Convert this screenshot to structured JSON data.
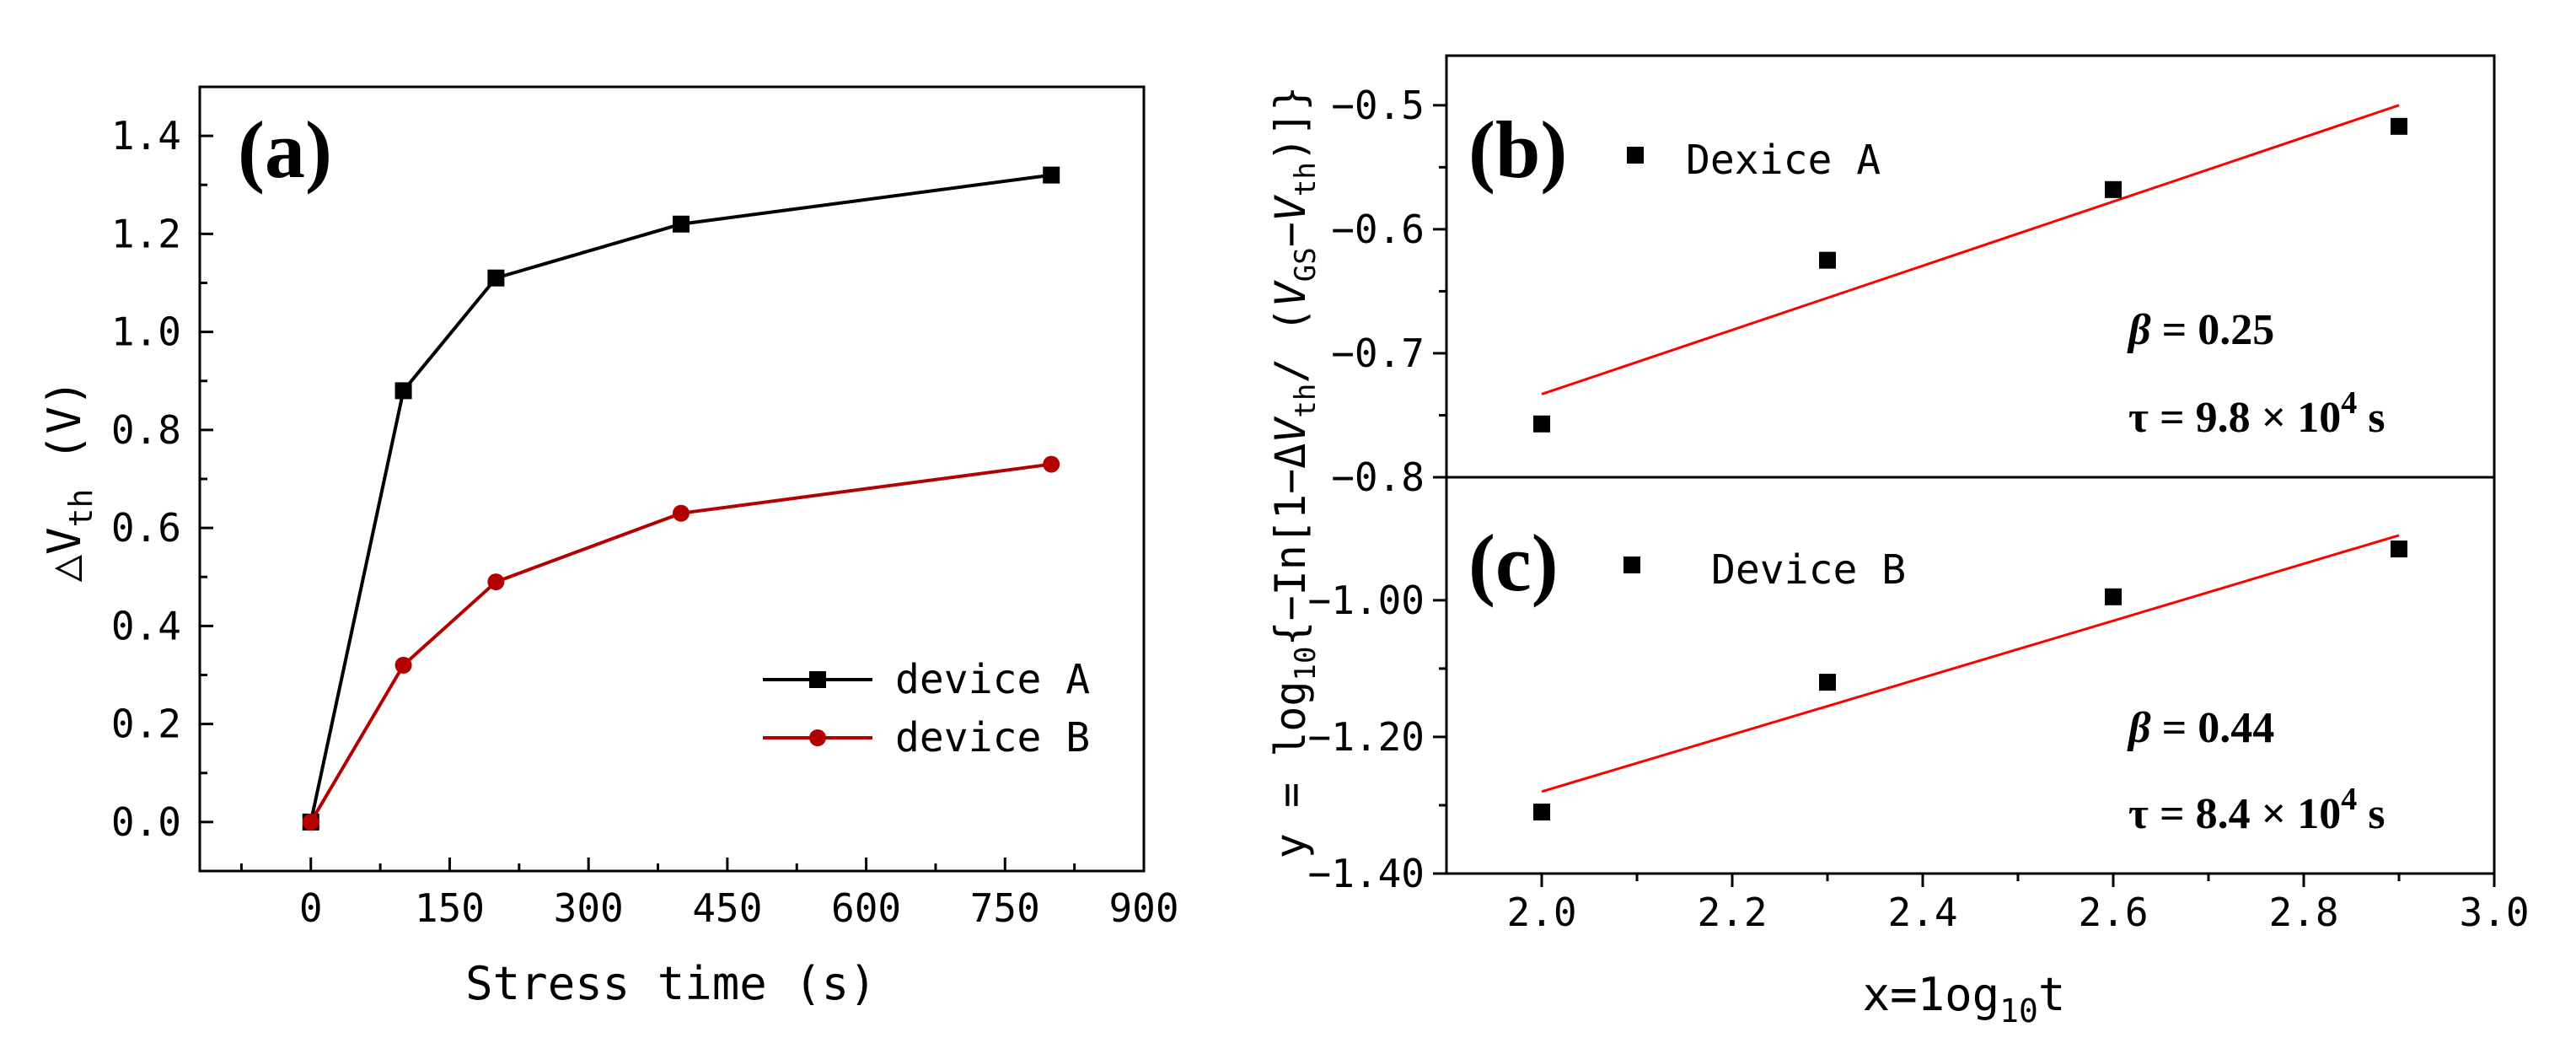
{
  "chart_data": [
    {
      "id": "a",
      "type": "line",
      "panel_label": "(a)",
      "xlabel": "Stress time (s)",
      "ylabel": "△V",
      "ylabel_sub": "th",
      "ylabel_unit": " (V)",
      "xlim": [
        -120,
        900
      ],
      "ylim": [
        -0.1,
        1.5
      ],
      "xticks": [
        0,
        150,
        300,
        450,
        600,
        750,
        900
      ],
      "yticks": [
        0.0,
        0.2,
        0.4,
        0.6,
        0.8,
        1.0,
        1.2,
        1.4
      ],
      "xtick_labels": [
        "0",
        "150",
        "300",
        "450",
        "600",
        "750",
        "900"
      ],
      "ytick_labels": [
        "0.0",
        "0.2",
        "0.4",
        "0.6",
        "0.8",
        "1.0",
        "1.2",
        "1.4"
      ],
      "legend_position": "bottom-right",
      "series": [
        {
          "name": "device A",
          "color": "#000000",
          "marker": "square",
          "x": [
            0,
            100,
            200,
            400,
            800
          ],
          "y": [
            0.0,
            0.88,
            1.11,
            1.22,
            1.32
          ]
        },
        {
          "name": "device B",
          "color": "#b30000",
          "marker": "circle",
          "x": [
            0,
            100,
            200,
            400,
            800
          ],
          "y": [
            0.0,
            0.32,
            0.49,
            0.63,
            0.73
          ]
        }
      ]
    },
    {
      "id": "b",
      "type": "scatter",
      "panel_label": "(b)",
      "series_label": "Dexice A",
      "xlim": [
        1.9,
        3.0
      ],
      "ylim": [
        -0.8,
        -0.46
      ],
      "yticks": [
        -0.8,
        -0.7,
        -0.6,
        -0.5
      ],
      "ytick_labels": [
        "−0.8",
        "−0.7",
        "−0.6",
        "−0.5"
      ],
      "points": {
        "x": [
          2.0,
          2.3,
          2.6,
          2.9
        ],
        "y": [
          -0.757,
          -0.625,
          -0.568,
          -0.517
        ]
      },
      "fit": {
        "color": "#ff0000",
        "x": [
          2.0,
          2.9
        ],
        "y": [
          -0.733,
          -0.5
        ]
      },
      "beta_label": "β",
      "beta_value": " = 0.25",
      "tau_label": "τ = 9.8 × 10",
      "tau_exp": "4",
      "tau_unit": " s"
    },
    {
      "id": "c",
      "type": "scatter",
      "panel_label": "(c)",
      "series_label": "Device B",
      "xlim": [
        1.9,
        3.0
      ],
      "ylim": [
        -1.4,
        -0.82
      ],
      "xticks": [
        2.0,
        2.2,
        2.4,
        2.6,
        2.8,
        3.0
      ],
      "xtick_labels": [
        "2.0",
        "2.2",
        "2.4",
        "2.6",
        "2.8",
        "3.0"
      ],
      "yticks": [
        -1.0,
        -1.2,
        -1.4
      ],
      "ytick_labels": [
        "−1.00",
        "−1.20",
        "−1.40"
      ],
      "points": {
        "x": [
          2.0,
          2.3,
          2.6,
          2.9
        ],
        "y": [
          -1.31,
          -1.12,
          -0.995,
          -0.925
        ]
      },
      "fit": {
        "color": "#ff0000",
        "x": [
          2.0,
          2.9
        ],
        "y": [
          -1.28,
          -0.905
        ]
      },
      "beta_label": "β",
      "beta_value": " = 0.44",
      "tau_label": "τ = 8.4 × 10",
      "tau_exp": "4",
      "tau_unit": " s"
    }
  ],
  "shared_right": {
    "xlabel": "x=1og",
    "xlabel_sub": "10",
    "xlabel_tail": "t",
    "ylabel_pre": "y = log",
    "ylabel_sub10": "10",
    "ylabel_mid": "{−In[1−Δ",
    "ylabel_v": "V",
    "ylabel_th": "th",
    "ylabel_slash": "/ (",
    "ylabel_vgs": "V",
    "ylabel_gs": "GS",
    "ylabel_minus": "−",
    "ylabel_v2": "V",
    "ylabel_th2": "th",
    "ylabel_end": ")]}"
  }
}
